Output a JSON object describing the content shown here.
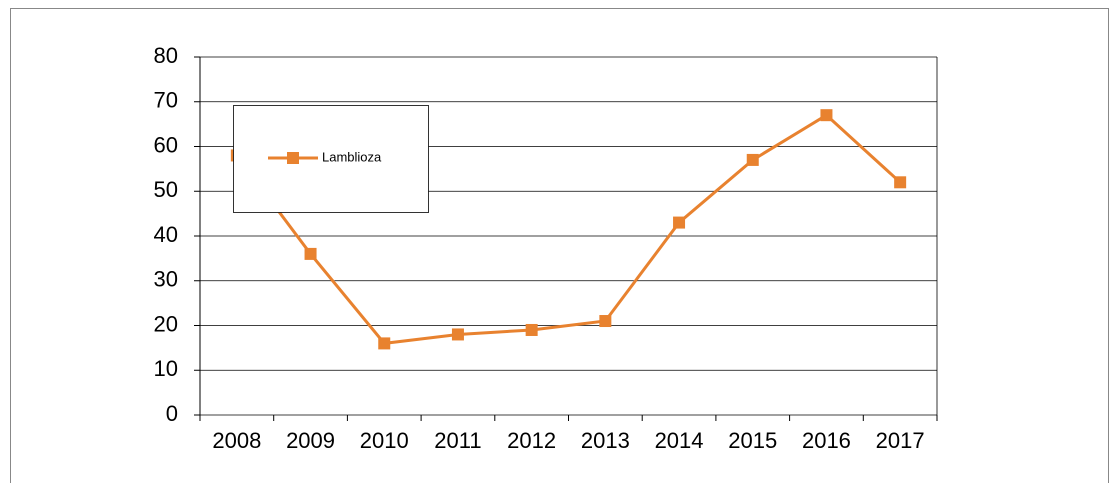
{
  "chart_data": {
    "type": "line",
    "categories": [
      "2008",
      "2009",
      "2010",
      "2011",
      "2012",
      "2013",
      "2014",
      "2015",
      "2016",
      "2017"
    ],
    "series": [
      {
        "name": "Lamblioza",
        "color": "#e8822f",
        "values": [
          58,
          36,
          16,
          18,
          19,
          21,
          43,
          57,
          67,
          52
        ]
      }
    ],
    "ylim": [
      0,
      80
    ],
    "yticks": [
      0,
      10,
      20,
      30,
      40,
      50,
      60,
      70,
      80
    ],
    "grid": true,
    "legend": "upper left"
  }
}
